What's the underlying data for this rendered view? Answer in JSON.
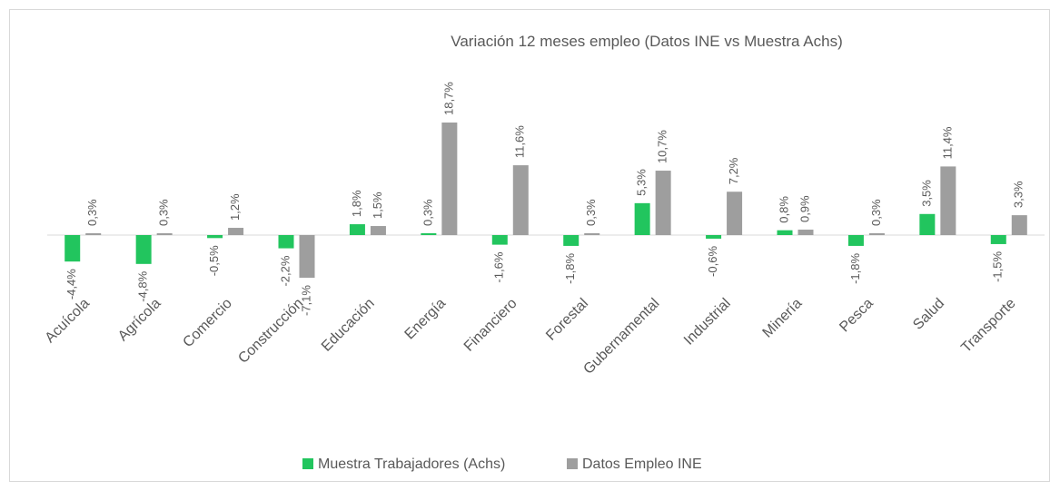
{
  "chart_data": {
    "type": "bar",
    "title": "Variación 12 meses empleo (Datos INE vs Muestra Achs)",
    "categories": [
      "Acuícola",
      "Agrícola",
      "Comercio",
      "Construcción",
      "Educación",
      "Energía",
      "Financiero",
      "Forestal",
      "Gubernamental",
      "Industrial",
      "Minería",
      "Pesca",
      "Salud",
      "Transporte"
    ],
    "series": [
      {
        "name": "Muestra Trabajadores (Achs)",
        "color": "#22c55e",
        "values": [
          -4.4,
          -4.8,
          -0.5,
          -2.2,
          1.8,
          0.3,
          -1.6,
          -1.8,
          5.3,
          -0.6,
          0.8,
          -1.8,
          3.5,
          -1.5
        ],
        "value_labels": [
          "-4,4%",
          "-4,8%",
          "-0,5%",
          "-2,2%",
          "1,8%",
          "0,3%",
          "-1,6%",
          "-1,8%",
          "5,3%",
          "-0,6%",
          "0,8%",
          "-1,8%",
          "3,5%",
          "-1,5%"
        ]
      },
      {
        "name": "Datos Empleo INE",
        "color": "#9e9e9e",
        "values": [
          0.3,
          0.3,
          1.2,
          -7.1,
          1.5,
          18.7,
          11.6,
          0.3,
          10.7,
          7.2,
          0.9,
          0.3,
          11.4,
          3.3
        ],
        "value_labels": [
          "0,3%",
          "0,3%",
          "1,2%",
          "-7,1%",
          "1,5%",
          "18,7%",
          "11,6%",
          "0,3%",
          "10,7%",
          "7,2%",
          "0,9%",
          "0,3%",
          "11,4%",
          "3,3%"
        ]
      }
    ],
    "legend": "bottom"
  }
}
